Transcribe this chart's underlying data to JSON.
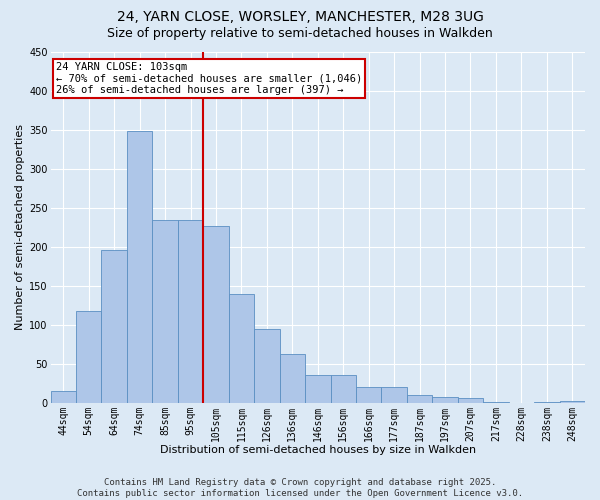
{
  "title1": "24, YARN CLOSE, WORSLEY, MANCHESTER, M28 3UG",
  "title2": "Size of property relative to semi-detached houses in Walkden",
  "xlabel": "Distribution of semi-detached houses by size in Walkden",
  "ylabel": "Number of semi-detached properties",
  "bins": [
    "44sqm",
    "54sqm",
    "64sqm",
    "74sqm",
    "85sqm",
    "95sqm",
    "105sqm",
    "115sqm",
    "126sqm",
    "136sqm",
    "146sqm",
    "156sqm",
    "166sqm",
    "177sqm",
    "187sqm",
    "197sqm",
    "207sqm",
    "217sqm",
    "228sqm",
    "238sqm",
    "248sqm"
  ],
  "values": [
    15,
    118,
    196,
    348,
    234,
    234,
    226,
    140,
    95,
    63,
    35,
    35,
    20,
    20,
    10,
    7,
    6,
    1,
    0,
    1,
    2
  ],
  "bar_color": "#aec6e8",
  "bar_edge_color": "#5a8fc2",
  "vline_x_index": 6,
  "vline_color": "#cc0000",
  "annotation_text": "24 YARN CLOSE: 103sqm\n← 70% of semi-detached houses are smaller (1,046)\n26% of semi-detached houses are larger (397) →",
  "annotation_box_color": "#ffffff",
  "annotation_box_edge": "#cc0000",
  "ylim": [
    0,
    450
  ],
  "yticks": [
    0,
    50,
    100,
    150,
    200,
    250,
    300,
    350,
    400,
    450
  ],
  "background_color": "#dce9f5",
  "footer1": "Contains HM Land Registry data © Crown copyright and database right 2025.",
  "footer2": "Contains public sector information licensed under the Open Government Licence v3.0.",
  "title1_fontsize": 10,
  "title2_fontsize": 9,
  "xlabel_fontsize": 8,
  "ylabel_fontsize": 8,
  "tick_fontsize": 7,
  "annotation_fontsize": 7.5,
  "footer_fontsize": 6.5
}
